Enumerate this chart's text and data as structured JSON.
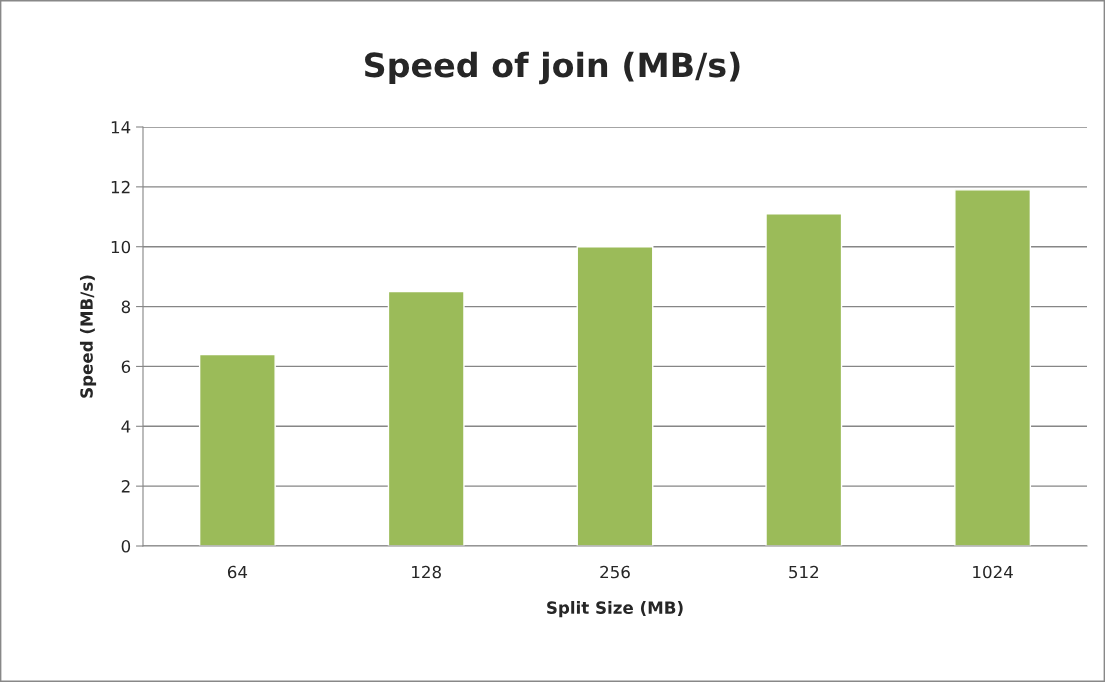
{
  "chart_data": {
    "type": "bar",
    "title": "Speed of join (MB/s)",
    "xlabel": "Split Size (MB)",
    "ylabel": "Speed (MB/s)",
    "categories": [
      "64",
      "128",
      "256",
      "512",
      "1024"
    ],
    "values": [
      6.4,
      8.5,
      10.0,
      11.1,
      11.9
    ],
    "color": "#9bbb59",
    "ylim": [
      0,
      14
    ],
    "yticks": [
      0,
      2,
      4,
      6,
      8,
      10,
      12,
      14
    ],
    "grid": "y",
    "legend": false
  }
}
